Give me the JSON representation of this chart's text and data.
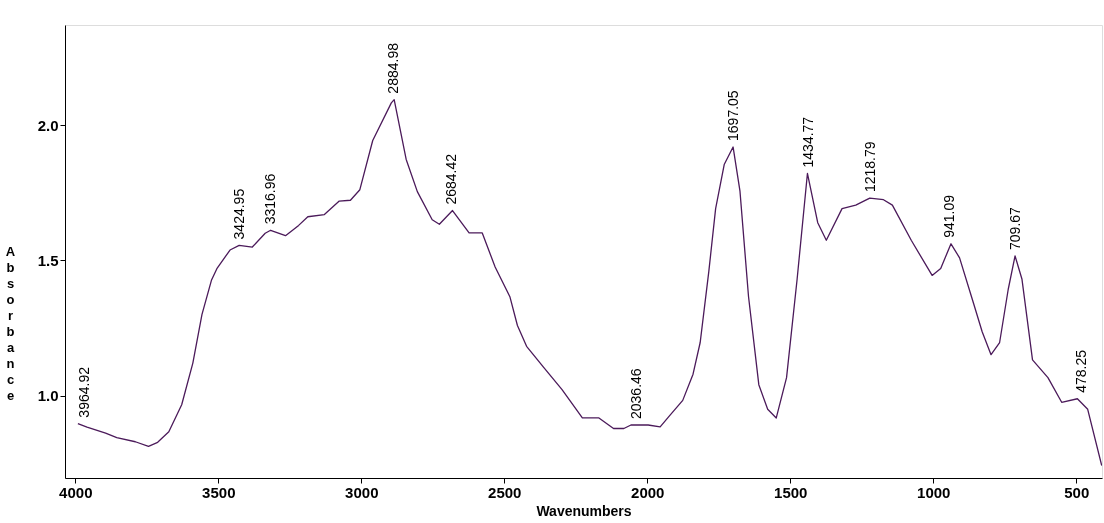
{
  "chart_data": {
    "type": "line",
    "xlabel": "Wavenumbers",
    "ylabel": "Absorbance",
    "xlim": [
      4036,
      410
    ],
    "ylim": [
      0.695,
      2.37
    ],
    "xticks": [
      4000,
      3500,
      3000,
      2500,
      2000,
      1500,
      1000,
      500
    ],
    "yticks": [
      {
        "value": 1,
        "label": "1.0"
      },
      {
        "value": 1.5,
        "label": "1.5"
      },
      {
        "value": 2,
        "label": "2.0"
      }
    ],
    "grid": false,
    "marker": "none",
    "line_style": "solid",
    "series": [
      {
        "color": "#4b1a5a",
        "x": [
          3991,
          3959,
          3894,
          3855,
          3790,
          3744,
          3712,
          3673,
          3628,
          3589,
          3557,
          3524,
          3505,
          3459,
          3427,
          3381,
          3336,
          3317,
          3265,
          3219,
          3187,
          3129,
          3077,
          3038,
          3005,
          2960,
          2895,
          2885,
          2843,
          2804,
          2752,
          2727,
          2681,
          2623,
          2577,
          2532,
          2480,
          2454,
          2422,
          2363,
          2298,
          2227,
          2169,
          2118,
          2082,
          2057,
          1997,
          1955,
          1924,
          1876,
          1840,
          1815,
          1785,
          1761,
          1731,
          1700,
          1676,
          1646,
          1610,
          1579,
          1549,
          1513,
          1476,
          1440,
          1404,
          1374,
          1319,
          1271,
          1222,
          1174,
          1143,
          1077,
          1004,
          974,
          938,
          908,
          859,
          829,
          798,
          768,
          738,
          714,
          690,
          653,
          599,
          551,
          496,
          460,
          411
        ],
        "values": [
          0.896,
          0.883,
          0.861,
          0.844,
          0.829,
          0.812,
          0.827,
          0.866,
          0.966,
          1.12,
          1.3,
          1.426,
          1.469,
          1.538,
          1.555,
          1.549,
          1.6,
          1.611,
          1.591,
          1.629,
          1.661,
          1.669,
          1.719,
          1.722,
          1.761,
          1.943,
          2.082,
          2.094,
          1.873,
          1.754,
          1.65,
          1.633,
          1.684,
          1.601,
          1.601,
          1.475,
          1.364,
          1.259,
          1.182,
          1.105,
          1.022,
          0.917,
          0.917,
          0.878,
          0.878,
          0.891,
          0.891,
          0.884,
          0.923,
          0.982,
          1.079,
          1.196,
          1.457,
          1.691,
          1.854,
          1.919,
          1.757,
          1.366,
          1.04,
          0.949,
          0.917,
          1.066,
          1.431,
          1.821,
          1.639,
          1.574,
          1.691,
          1.704,
          1.73,
          1.724,
          1.704,
          1.574,
          1.444,
          1.47,
          1.561,
          1.509,
          1.34,
          1.236,
          1.151,
          1.196,
          1.392,
          1.516,
          1.431,
          1.132,
          1.066,
          0.975,
          0.988,
          0.949,
          0.741
        ]
      }
    ],
    "annotations": [
      {
        "text": "3964.92",
        "x": 3964.92,
        "y": 0.896
      },
      {
        "text": "3424.95",
        "x": 3424.95,
        "y": 1.555
      },
      {
        "text": "3316.96",
        "x": 3316.96,
        "y": 1.611
      },
      {
        "text": "2884.98",
        "x": 2884.98,
        "y": 2.094
      },
      {
        "text": "2684.42",
        "x": 2684.42,
        "y": 1.684
      },
      {
        "text": "2036.46",
        "x": 2036.46,
        "y": 0.891
      },
      {
        "text": "1697.05",
        "x": 1697.05,
        "y": 1.919
      },
      {
        "text": "1434.77",
        "x": 1434.77,
        "y": 1.821
      },
      {
        "text": "1218.79",
        "x": 1218.79,
        "y": 1.73
      },
      {
        "text": "941.09",
        "x": 941.09,
        "y": 1.561
      },
      {
        "text": "709.67",
        "x": 709.67,
        "y": 1.516
      },
      {
        "text": "478.25",
        "x": 478.25,
        "y": 0.988
      }
    ]
  }
}
